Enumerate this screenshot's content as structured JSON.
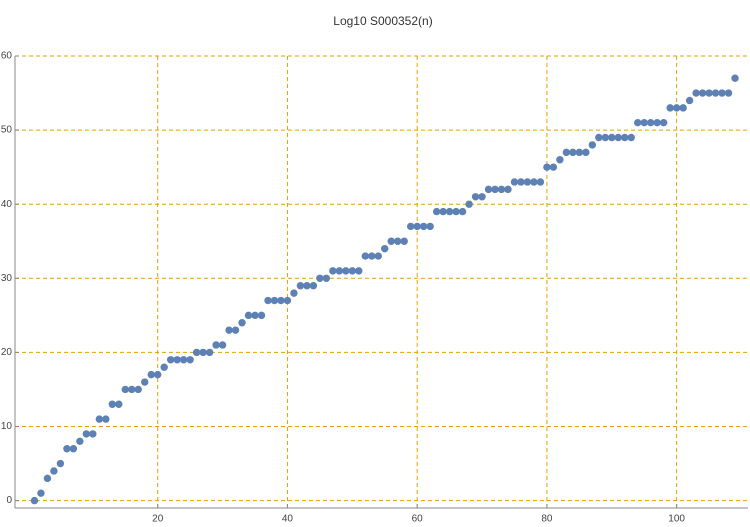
{
  "chart_data": {
    "type": "scatter",
    "title": "Log10 S000352(n)",
    "x": [
      1,
      2,
      3,
      4,
      5,
      6,
      7,
      8,
      9,
      10,
      11,
      12,
      13,
      14,
      15,
      16,
      17,
      18,
      19,
      20,
      21,
      22,
      23,
      24,
      25,
      26,
      27,
      28,
      29,
      30,
      31,
      32,
      33,
      34,
      35,
      36,
      37,
      38,
      39,
      40,
      41,
      42,
      43,
      44,
      45,
      46,
      47,
      48,
      49,
      50,
      51,
      52,
      53,
      54,
      55,
      56,
      57,
      58,
      59,
      60,
      61,
      62,
      63,
      64,
      65,
      66,
      67,
      68,
      69,
      70,
      71,
      72,
      73,
      74,
      75,
      76,
      77,
      78,
      79,
      80,
      81,
      82,
      83,
      84,
      85,
      86,
      87,
      88,
      89,
      90,
      91,
      92,
      93,
      94,
      95,
      96,
      97,
      98,
      99,
      100,
      101,
      102,
      103,
      104,
      105,
      106,
      107,
      108,
      109
    ],
    "values": [
      0,
      1,
      3,
      4,
      5,
      7,
      7,
      8,
      9,
      9,
      11,
      11,
      13,
      13,
      15,
      15,
      15,
      16,
      17,
      17,
      18,
      19,
      19,
      19,
      19,
      20,
      20,
      20,
      21,
      21,
      23,
      23,
      24,
      25,
      25,
      25,
      27,
      27,
      27,
      27,
      28,
      29,
      29,
      29,
      30,
      30,
      31,
      31,
      31,
      31,
      31,
      33,
      33,
      33,
      34,
      35,
      35,
      35,
      37,
      37,
      37,
      37,
      39,
      39,
      39,
      39,
      39,
      40,
      41,
      41,
      42,
      42,
      42,
      42,
      43,
      43,
      43,
      43,
      43,
      45,
      45,
      46,
      47,
      47,
      47,
      47,
      48,
      49,
      49,
      49,
      49,
      49,
      49,
      51,
      51,
      51,
      51,
      51,
      53,
      53,
      53,
      54,
      55,
      55,
      55,
      55,
      55,
      55,
      57
    ],
    "color": "#5e81b5",
    "grid_color": "#e69f00",
    "xlim": [
      -2,
      111
    ],
    "ylim": [
      -1,
      60
    ],
    "xticks": [
      20,
      40,
      60,
      80,
      100
    ],
    "yticks": [
      0,
      10,
      20,
      30,
      40,
      50,
      60
    ],
    "grid": true
  }
}
